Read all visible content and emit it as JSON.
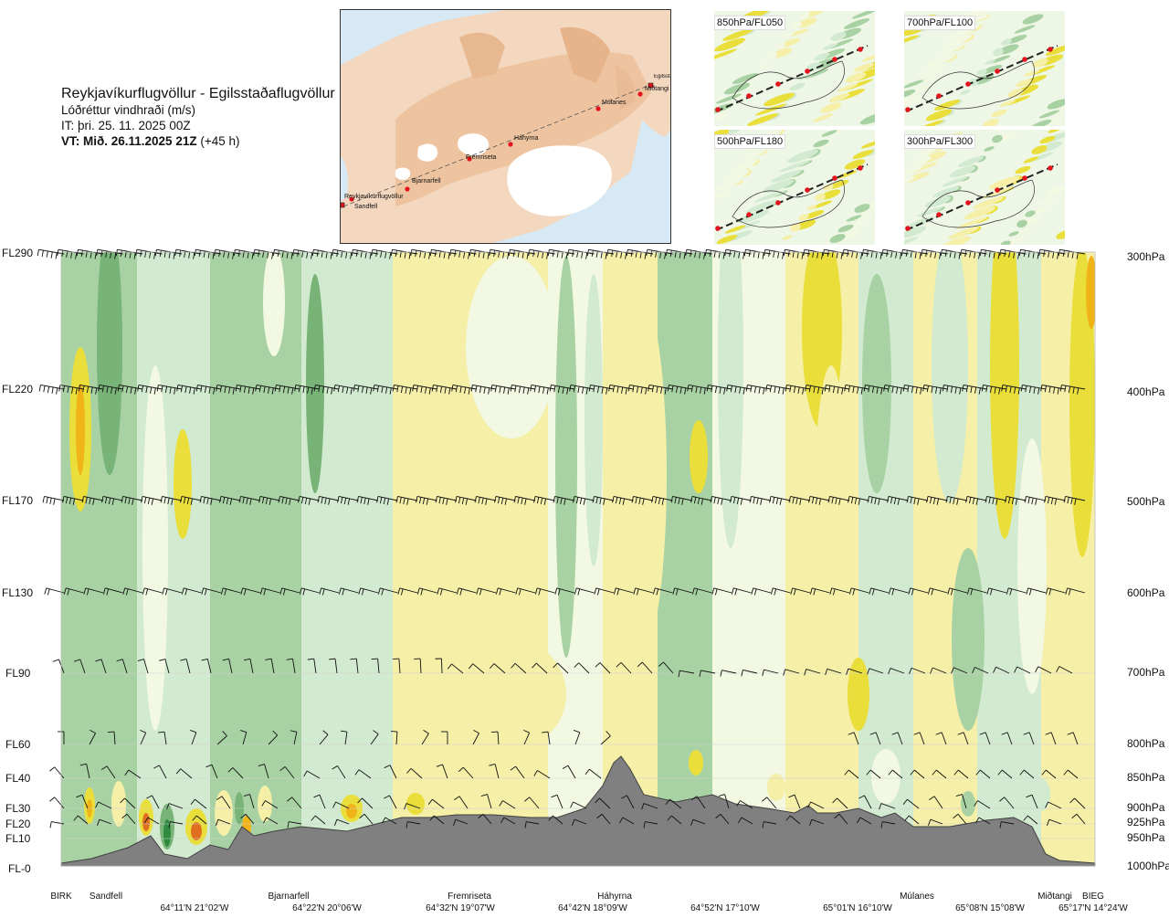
{
  "header": {
    "route": "Reykjavíkurflugvöllur - Egilsstaðaflugvöllur",
    "parameter": "Lóðréttur vindhraði (m/s)",
    "issue_time": "IT: þri. 25. 11. 2025 00Z",
    "valid_label": "VT: Mið. 26.11.2025 21Z",
    "valid_offset": "(+45 h)"
  },
  "map": {
    "places": [
      "Reykjavíkurflugvöllur",
      "Sandfell",
      "Bjarnarfell",
      "Fremriseta",
      "Háhyrna",
      "Múlanes",
      "Egilsstaðaflugvöllur",
      "Miðtangi"
    ]
  },
  "panels": [
    {
      "label": "850hPa/FL050"
    },
    {
      "label": "700hPa/FL100"
    },
    {
      "label": "500hPa/FL180"
    },
    {
      "label": "300hPa/FL300"
    }
  ],
  "colors": {
    "strong_up": "#2e8b3f",
    "up": "#78b478",
    "weak_up": "#a8d2a3",
    "near_zero_up": "#d2ead0",
    "near_zero": "#f2f8e2",
    "weak_down": "#f5efa8",
    "down": "#eadf3a",
    "strong_down": "#f0b418",
    "very_strong_down": "#e07020",
    "terrain": "#808080"
  },
  "chart_data": {
    "type": "heatmap",
    "title": "Lóðréttur vindhraði (m/s)",
    "flight_levels": [
      "FL290",
      "FL220",
      "FL170",
      "FL130",
      "FL90",
      "FL60",
      "FL40",
      "FL30",
      "FL20",
      "FL10",
      "FL-0"
    ],
    "pressure_levels": [
      "300hPa",
      "400hPa",
      "500hPa",
      "600hPa",
      "700hPa",
      "800hPa",
      "850hPa",
      "900hPa",
      "925hPa",
      "950hPa",
      "1000hPa"
    ],
    "route_points": [
      "BIRK",
      "Sandfell",
      "Bjarnarfell",
      "Fremriseta",
      "Háhyrna",
      "Múlanes",
      "Miðtangi",
      "BIEG"
    ],
    "coordinates": [
      "64°11'N 21°02'W",
      "64°22'N 20°06'W",
      "64°32'N 19°07'W",
      "64°42'N 18°09'W",
      "64°52'N 17°10'W",
      "65°01'N 16°10'W",
      "65°08'N 15°08'W",
      "65°17'N 14°24'W"
    ]
  }
}
